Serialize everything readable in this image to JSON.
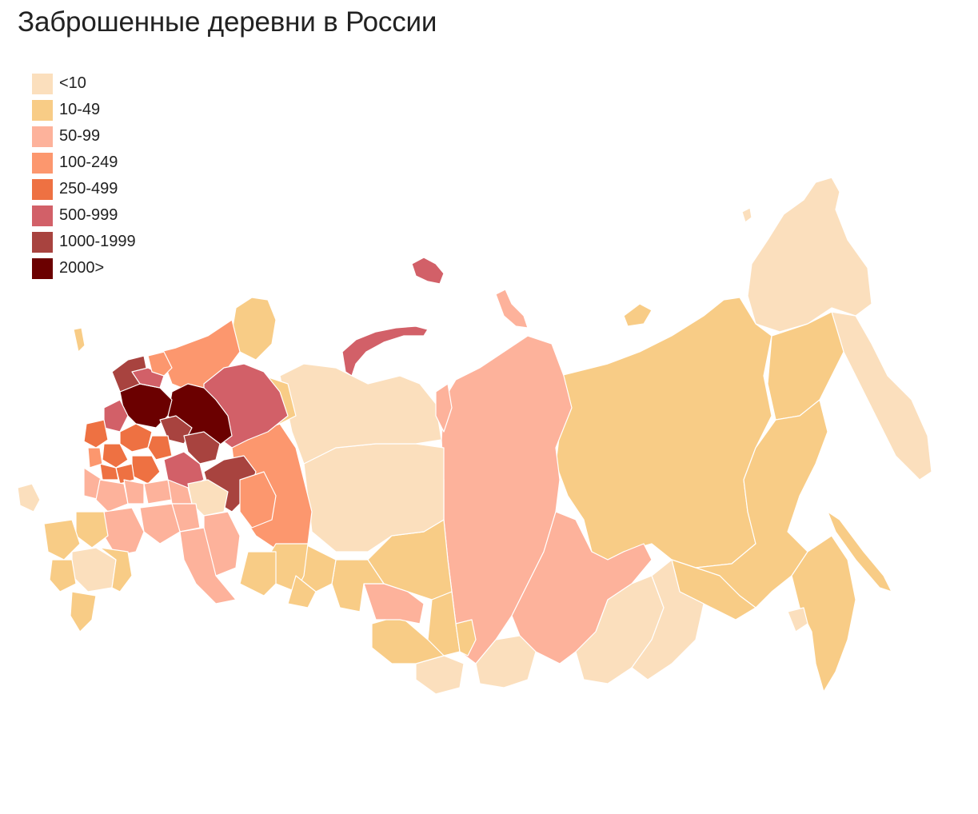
{
  "title": "Заброшенные деревни в России",
  "legend": [
    {
      "label": "<10",
      "color": "#fbdfbd"
    },
    {
      "label": "10-49",
      "color": "#f8cc86"
    },
    {
      "label": "50-99",
      "color": "#fdb29b"
    },
    {
      "label": "100-249",
      "color": "#fc976e"
    },
    {
      "label": "250-499",
      "color": "#ee7142"
    },
    {
      "label": "500-999",
      "color": "#d26068"
    },
    {
      "label": "1000-1999",
      "color": "#a8433f"
    },
    {
      "label": "2000>",
      "color": "#6b0000"
    }
  ],
  "map": {
    "type": "choropleth",
    "subject": "Россия по субъектам"
  }
}
